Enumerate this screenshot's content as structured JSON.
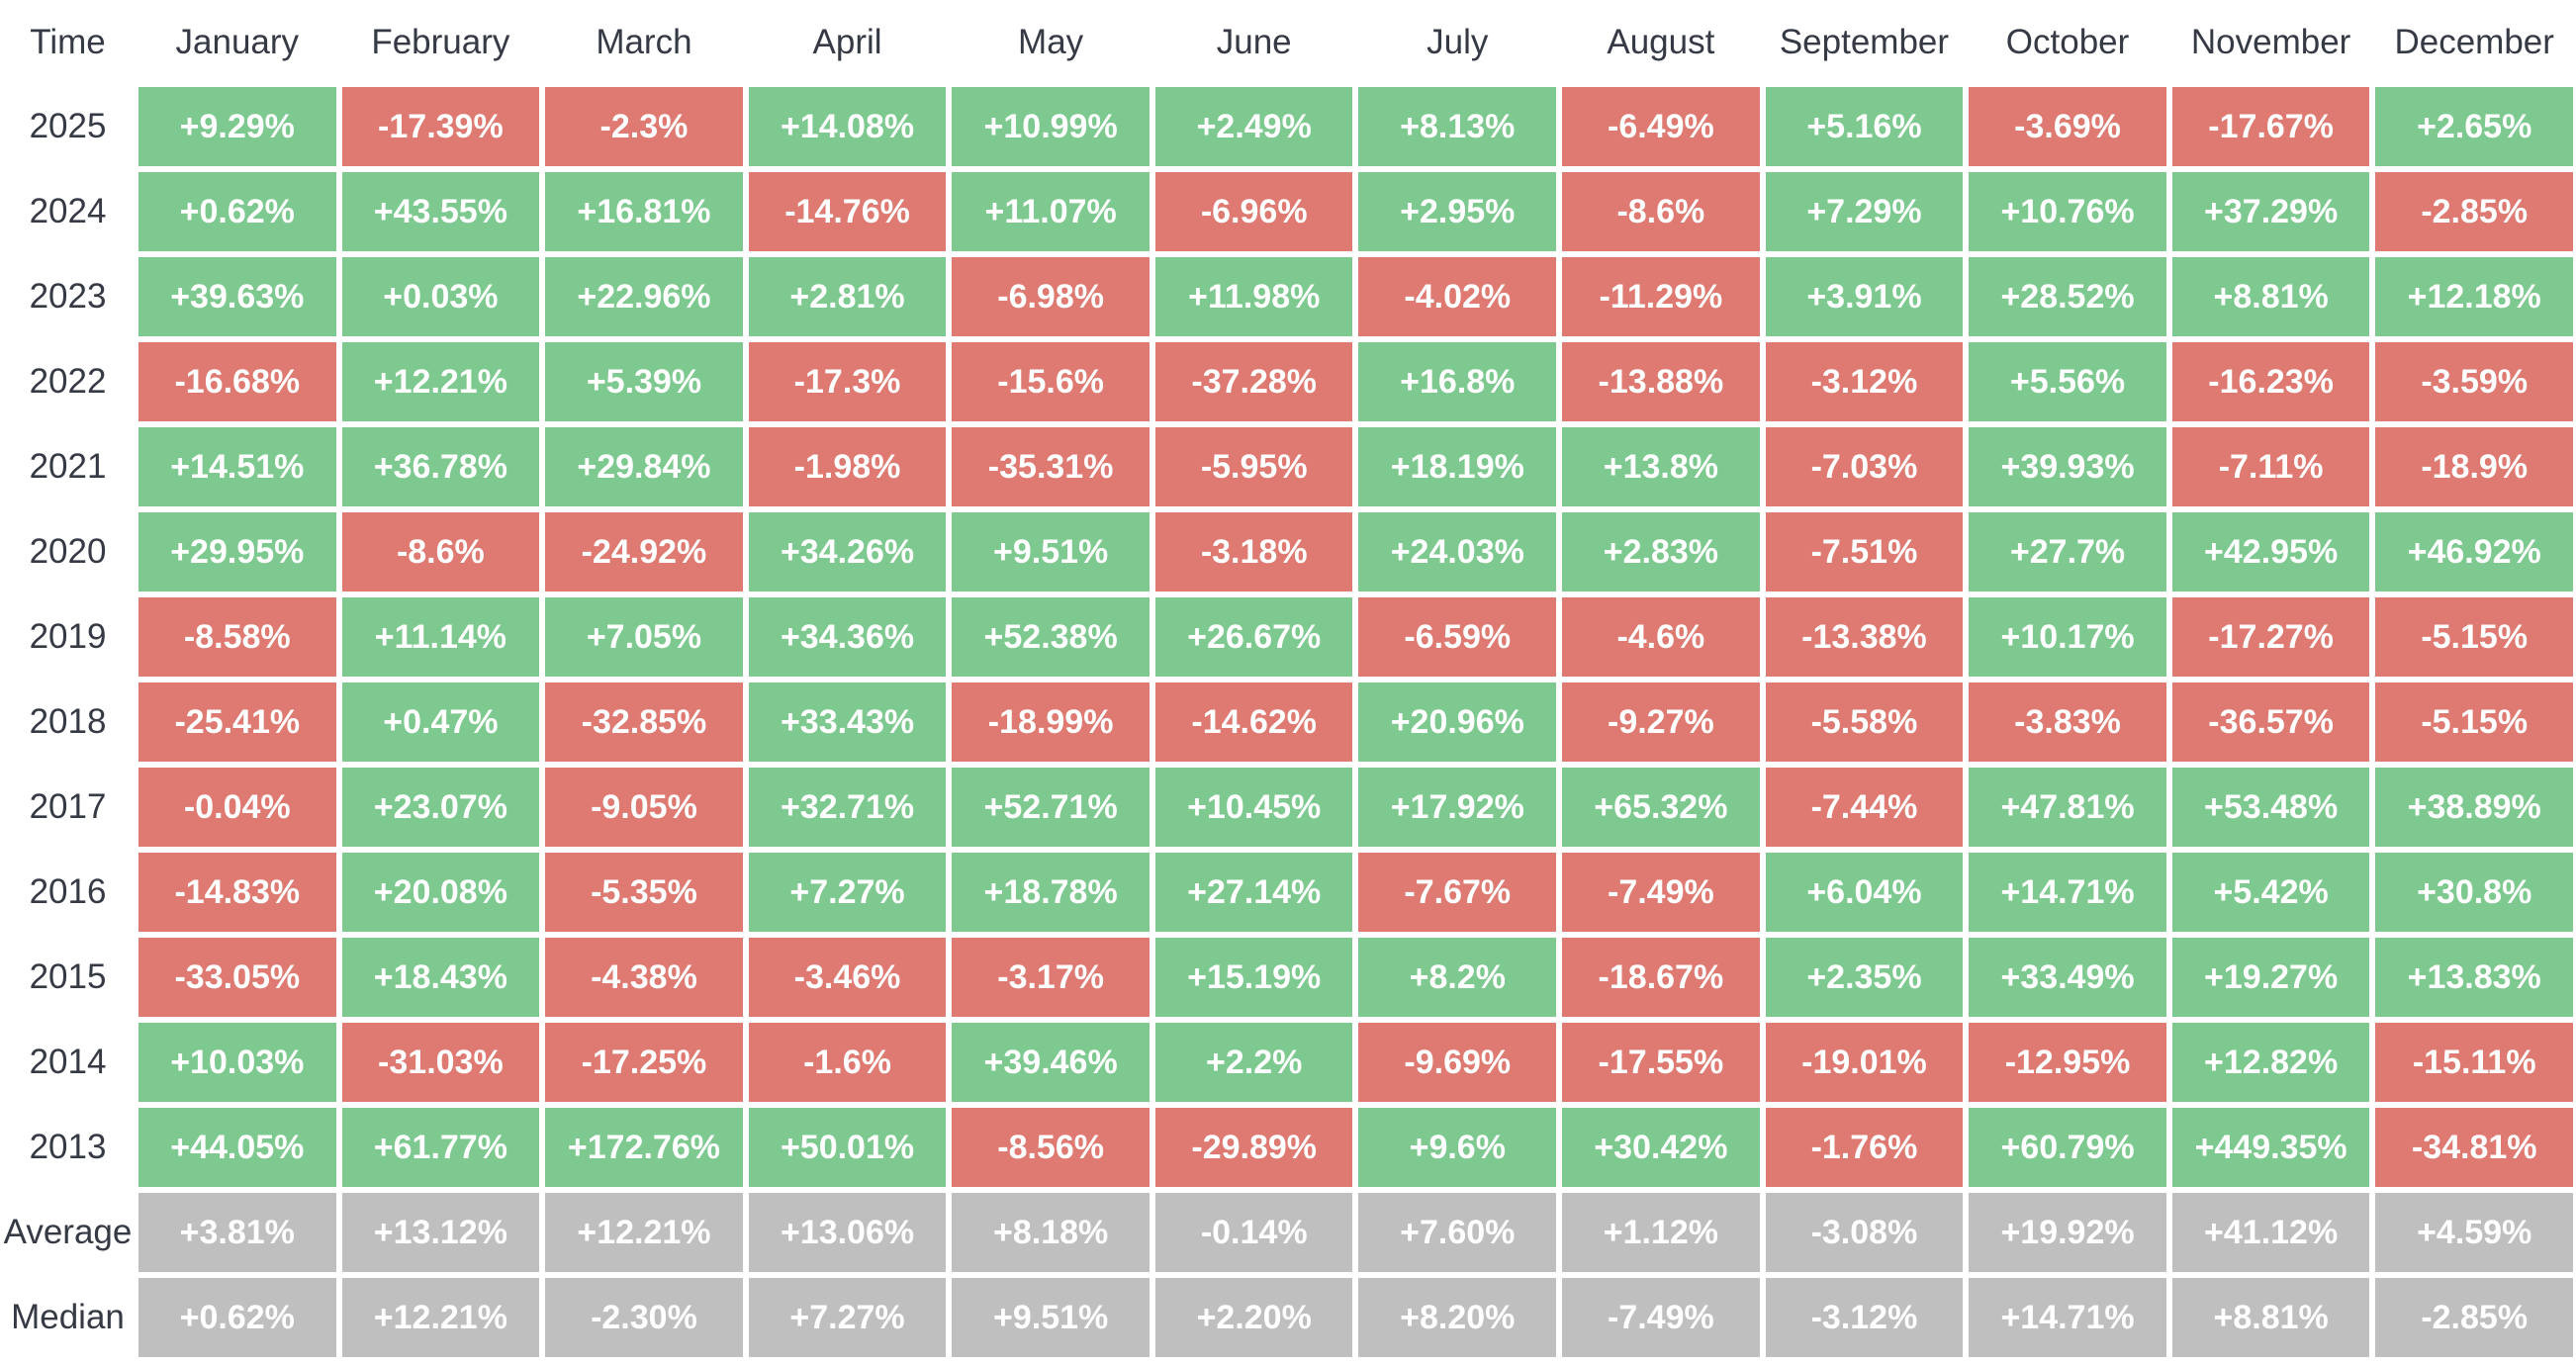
{
  "colors": {
    "positive": "#7ec98f",
    "negative": "#de7a72",
    "summary": "#bfbfbf",
    "cell_text": "#ffffff",
    "header_text": "#363a45",
    "background": "#ffffff"
  },
  "table": {
    "header": [
      "Time",
      "January",
      "February",
      "March",
      "April",
      "May",
      "June",
      "July",
      "August",
      "September",
      "October",
      "November",
      "December"
    ],
    "rows": [
      {
        "label": "2025",
        "type": "year",
        "values": [
          "+9.29%",
          "-17.39%",
          "-2.3%",
          "+14.08%",
          "+10.99%",
          "+2.49%",
          "+8.13%",
          "-6.49%",
          "+5.16%",
          "-3.69%",
          "-17.67%",
          "+2.65%"
        ]
      },
      {
        "label": "2024",
        "type": "year",
        "values": [
          "+0.62%",
          "+43.55%",
          "+16.81%",
          "-14.76%",
          "+11.07%",
          "-6.96%",
          "+2.95%",
          "-8.6%",
          "+7.29%",
          "+10.76%",
          "+37.29%",
          "-2.85%"
        ]
      },
      {
        "label": "2023",
        "type": "year",
        "values": [
          "+39.63%",
          "+0.03%",
          "+22.96%",
          "+2.81%",
          "-6.98%",
          "+11.98%",
          "-4.02%",
          "-11.29%",
          "+3.91%",
          "+28.52%",
          "+8.81%",
          "+12.18%"
        ]
      },
      {
        "label": "2022",
        "type": "year",
        "values": [
          "-16.68%",
          "+12.21%",
          "+5.39%",
          "-17.3%",
          "-15.6%",
          "-37.28%",
          "+16.8%",
          "-13.88%",
          "-3.12%",
          "+5.56%",
          "-16.23%",
          "-3.59%"
        ]
      },
      {
        "label": "2021",
        "type": "year",
        "values": [
          "+14.51%",
          "+36.78%",
          "+29.84%",
          "-1.98%",
          "-35.31%",
          "-5.95%",
          "+18.19%",
          "+13.8%",
          "-7.03%",
          "+39.93%",
          "-7.11%",
          "-18.9%"
        ]
      },
      {
        "label": "2020",
        "type": "year",
        "values": [
          "+29.95%",
          "-8.6%",
          "-24.92%",
          "+34.26%",
          "+9.51%",
          "-3.18%",
          "+24.03%",
          "+2.83%",
          "-7.51%",
          "+27.7%",
          "+42.95%",
          "+46.92%"
        ]
      },
      {
        "label": "2019",
        "type": "year",
        "values": [
          "-8.58%",
          "+11.14%",
          "+7.05%",
          "+34.36%",
          "+52.38%",
          "+26.67%",
          "-6.59%",
          "-4.6%",
          "-13.38%",
          "+10.17%",
          "-17.27%",
          "-5.15%"
        ]
      },
      {
        "label": "2018",
        "type": "year",
        "values": [
          "-25.41%",
          "+0.47%",
          "-32.85%",
          "+33.43%",
          "-18.99%",
          "-14.62%",
          "+20.96%",
          "-9.27%",
          "-5.58%",
          "-3.83%",
          "-36.57%",
          "-5.15%"
        ]
      },
      {
        "label": "2017",
        "type": "year",
        "values": [
          "-0.04%",
          "+23.07%",
          "-9.05%",
          "+32.71%",
          "+52.71%",
          "+10.45%",
          "+17.92%",
          "+65.32%",
          "-7.44%",
          "+47.81%",
          "+53.48%",
          "+38.89%"
        ]
      },
      {
        "label": "2016",
        "type": "year",
        "values": [
          "-14.83%",
          "+20.08%",
          "-5.35%",
          "+7.27%",
          "+18.78%",
          "+27.14%",
          "-7.67%",
          "-7.49%",
          "+6.04%",
          "+14.71%",
          "+5.42%",
          "+30.8%"
        ]
      },
      {
        "label": "2015",
        "type": "year",
        "values": [
          "-33.05%",
          "+18.43%",
          "-4.38%",
          "-3.46%",
          "-3.17%",
          "+15.19%",
          "+8.2%",
          "-18.67%",
          "+2.35%",
          "+33.49%",
          "+19.27%",
          "+13.83%"
        ]
      },
      {
        "label": "2014",
        "type": "year",
        "values": [
          "+10.03%",
          "-31.03%",
          "-17.25%",
          "-1.6%",
          "+39.46%",
          "+2.2%",
          "-9.69%",
          "-17.55%",
          "-19.01%",
          "-12.95%",
          "+12.82%",
          "-15.11%"
        ]
      },
      {
        "label": "2013",
        "type": "year",
        "values": [
          "+44.05%",
          "+61.77%",
          "+172.76%",
          "+50.01%",
          "-8.56%",
          "-29.89%",
          "+9.6%",
          "+30.42%",
          "-1.76%",
          "+60.79%",
          "+449.35%",
          "-34.81%"
        ]
      },
      {
        "label": "Average",
        "type": "summary",
        "values": [
          "+3.81%",
          "+13.12%",
          "+12.21%",
          "+13.06%",
          "+8.18%",
          "-0.14%",
          "+7.60%",
          "+1.12%",
          "-3.08%",
          "+19.92%",
          "+41.12%",
          "+4.59%"
        ]
      },
      {
        "label": "Median",
        "type": "summary",
        "values": [
          "+0.62%",
          "+12.21%",
          "-2.30%",
          "+7.27%",
          "+9.51%",
          "+2.20%",
          "+8.20%",
          "-7.49%",
          "-3.12%",
          "+14.71%",
          "+8.81%",
          "-2.85%"
        ]
      }
    ]
  },
  "chart_data": {
    "type": "heatmap",
    "x_labels": [
      "January",
      "February",
      "March",
      "April",
      "May",
      "June",
      "July",
      "August",
      "September",
      "October",
      "November",
      "December"
    ],
    "y_labels": [
      "2025",
      "2024",
      "2023",
      "2022",
      "2021",
      "2020",
      "2019",
      "2018",
      "2017",
      "2016",
      "2015",
      "2014",
      "2013",
      "Average",
      "Median"
    ],
    "value_unit": "percent",
    "legend_position": "none",
    "grid": false,
    "color_rule": "cell green when value positive, red when negative, gray for Average/Median summary rows",
    "series": [
      {
        "name": "2025",
        "values": [
          9.29,
          -17.39,
          -2.3,
          14.08,
          10.99,
          2.49,
          8.13,
          -6.49,
          5.16,
          -3.69,
          -17.67,
          2.65
        ]
      },
      {
        "name": "2024",
        "values": [
          0.62,
          43.55,
          16.81,
          -14.76,
          11.07,
          -6.96,
          2.95,
          -8.6,
          7.29,
          10.76,
          37.29,
          -2.85
        ]
      },
      {
        "name": "2023",
        "values": [
          39.63,
          0.03,
          22.96,
          2.81,
          -6.98,
          11.98,
          -4.02,
          -11.29,
          3.91,
          28.52,
          8.81,
          12.18
        ]
      },
      {
        "name": "2022",
        "values": [
          -16.68,
          12.21,
          5.39,
          -17.3,
          -15.6,
          -37.28,
          16.8,
          -13.88,
          -3.12,
          5.56,
          -16.23,
          -3.59
        ]
      },
      {
        "name": "2021",
        "values": [
          14.51,
          36.78,
          29.84,
          -1.98,
          -35.31,
          -5.95,
          18.19,
          13.8,
          -7.03,
          39.93,
          -7.11,
          -18.9
        ]
      },
      {
        "name": "2020",
        "values": [
          29.95,
          -8.6,
          -24.92,
          34.26,
          9.51,
          -3.18,
          24.03,
          2.83,
          -7.51,
          27.7,
          42.95,
          46.92
        ]
      },
      {
        "name": "2019",
        "values": [
          -8.58,
          11.14,
          7.05,
          34.36,
          52.38,
          26.67,
          -6.59,
          -4.6,
          -13.38,
          10.17,
          -17.27,
          -5.15
        ]
      },
      {
        "name": "2018",
        "values": [
          -25.41,
          0.47,
          -32.85,
          33.43,
          -18.99,
          -14.62,
          20.96,
          -9.27,
          -5.58,
          -3.83,
          -36.57,
          -5.15
        ]
      },
      {
        "name": "2017",
        "values": [
          -0.04,
          23.07,
          -9.05,
          32.71,
          52.71,
          10.45,
          17.92,
          65.32,
          -7.44,
          47.81,
          53.48,
          38.89
        ]
      },
      {
        "name": "2016",
        "values": [
          -14.83,
          20.08,
          -5.35,
          7.27,
          18.78,
          27.14,
          -7.67,
          -7.49,
          6.04,
          14.71,
          5.42,
          30.8
        ]
      },
      {
        "name": "2015",
        "values": [
          -33.05,
          18.43,
          -4.38,
          -3.46,
          -3.17,
          15.19,
          8.2,
          -18.67,
          2.35,
          33.49,
          19.27,
          13.83
        ]
      },
      {
        "name": "2014",
        "values": [
          10.03,
          -31.03,
          -17.25,
          -1.6,
          39.46,
          2.2,
          -9.69,
          -17.55,
          -19.01,
          -12.95,
          12.82,
          -15.11
        ]
      },
      {
        "name": "2013",
        "values": [
          44.05,
          61.77,
          172.76,
          50.01,
          -8.56,
          -29.89,
          9.6,
          30.42,
          -1.76,
          60.79,
          449.35,
          -34.81
        ]
      },
      {
        "name": "Average",
        "values": [
          3.81,
          13.12,
          12.21,
          13.06,
          8.18,
          -0.14,
          7.6,
          1.12,
          -3.08,
          19.92,
          41.12,
          4.59
        ]
      },
      {
        "name": "Median",
        "values": [
          0.62,
          12.21,
          -2.3,
          7.27,
          9.51,
          2.2,
          8.2,
          -7.49,
          -3.12,
          14.71,
          8.81,
          -2.85
        ]
      }
    ]
  }
}
